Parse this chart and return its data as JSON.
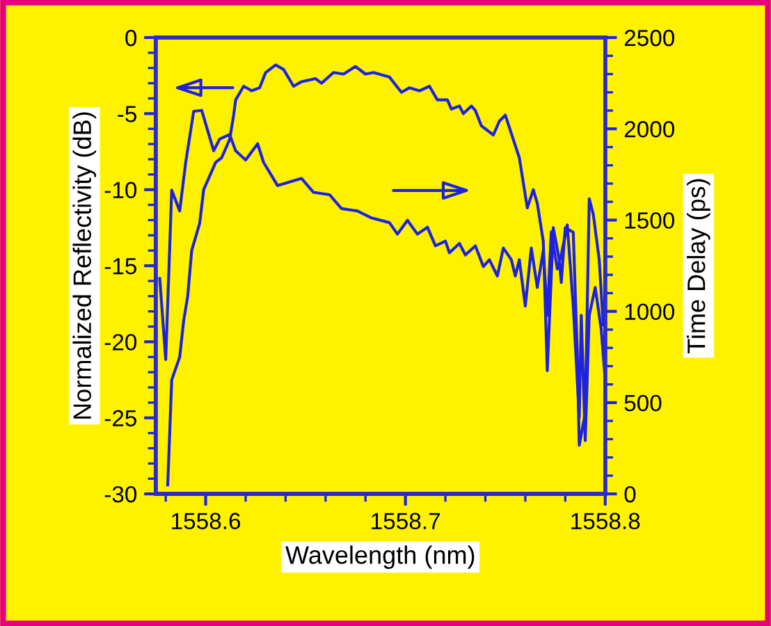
{
  "chart_data": {
    "type": "line",
    "xlabel": "Wavelength (nm)",
    "ylabel": "Normalized Reflectivity (dB)",
    "y2label": "Time Delay (ps)",
    "xlim": [
      1558.575,
      1558.8
    ],
    "xticks": [
      1558.6,
      1558.7,
      1558.8
    ],
    "ylim": [
      -30,
      0
    ],
    "yticks": [
      -30,
      -25,
      -20,
      -15,
      -10,
      -5,
      0
    ],
    "y2lim": [
      0,
      2500
    ],
    "y2ticks": [
      0,
      500,
      1000,
      1500,
      2000,
      2500
    ],
    "grid": false,
    "legend": false,
    "marker": "none",
    "line_style": "solid",
    "series": [
      {
        "color": "#1e22e0",
        "x": [
          1558.581,
          1558.583,
          1558.587,
          1558.589,
          1558.591,
          1558.593,
          1558.597,
          1558.599,
          1558.605,
          1558.608,
          1558.612,
          1558.614,
          1558.615,
          1558.619,
          1558.623,
          1558.627,
          1558.63,
          1558.635,
          1558.639,
          1558.644,
          1558.648,
          1558.655,
          1558.658,
          1558.664,
          1558.669,
          1558.675,
          1558.68,
          1558.684,
          1558.692,
          1558.698,
          1558.702,
          1558.707,
          1558.712,
          1558.716,
          1558.721,
          1558.723,
          1558.727,
          1558.729,
          1558.733,
          1558.735,
          1558.738,
          1558.744,
          1558.747,
          1558.75,
          1558.754,
          1558.757,
          1558.761,
          1558.764,
          1558.766,
          1558.769,
          1558.771,
          1558.774,
          1558.777,
          1558.778,
          1558.78,
          1558.784,
          1558.786,
          1558.787,
          1558.79,
          1558.792,
          1558.794,
          1558.797,
          1558.799
        ],
        "values": [
          -29.4,
          -22.5,
          -21.0,
          -18.6,
          -17.0,
          -14.0,
          -12.2,
          -10.0,
          -8.2,
          -7.9,
          -6.7,
          -5.1,
          -4.1,
          -3.2,
          -3.5,
          -3.3,
          -2.3,
          -1.8,
          -2.1,
          -3.2,
          -2.9,
          -2.7,
          -3.0,
          -2.3,
          -2.4,
          -1.9,
          -2.4,
          -2.3,
          -2.6,
          -3.6,
          -3.3,
          -3.5,
          -3.2,
          -4.1,
          -4.1,
          -4.7,
          -4.5,
          -5.0,
          -4.5,
          -4.8,
          -5.8,
          -6.4,
          -5.5,
          -5.1,
          -6.7,
          -7.9,
          -11.2,
          -10.0,
          -10.9,
          -13.4,
          -21.9,
          -12.5,
          -14.6,
          -16.1,
          -12.5,
          -12.8,
          -20.7,
          -26.8,
          -24.7,
          -10.6,
          -11.6,
          -14.6,
          -18.9
        ]
      },
      {
        "color": "#1e22e0",
        "axis": "y2",
        "x": [
          1558.577,
          1558.58,
          1558.583,
          1558.587,
          1558.59,
          1558.594,
          1558.598,
          1558.604,
          1558.607,
          1558.612,
          1558.615,
          1558.62,
          1558.626,
          1558.629,
          1558.636,
          1558.648,
          1558.654,
          1558.662,
          1558.668,
          1558.676,
          1558.683,
          1558.692,
          1558.696,
          1558.701,
          1558.706,
          1558.711,
          1558.715,
          1558.72,
          1558.722,
          1558.727,
          1558.73,
          1558.735,
          1558.739,
          1558.742,
          1558.746,
          1558.749,
          1558.753,
          1558.755,
          1558.757,
          1558.76,
          1558.763,
          1558.766,
          1558.769,
          1558.771,
          1558.773,
          1558.776,
          1558.778,
          1558.781,
          1558.784,
          1558.787,
          1558.788,
          1558.79,
          1558.792,
          1558.795,
          1558.798,
          1558.8
        ],
        "values": [
          1180,
          736,
          1664,
          1550,
          1816,
          2096,
          2101,
          1880,
          1944,
          1969,
          1880,
          1829,
          1918,
          1816,
          1689,
          1728,
          1652,
          1639,
          1563,
          1550,
          1512,
          1486,
          1423,
          1499,
          1423,
          1461,
          1359,
          1385,
          1321,
          1372,
          1309,
          1359,
          1245,
          1283,
          1194,
          1347,
          1283,
          1194,
          1283,
          1029,
          1347,
          1131,
          1334,
          978,
          1436,
          1232,
          1309,
          1474,
          1029,
          419,
          978,
          292,
          978,
          1131,
          902,
          623
        ]
      }
    ]
  }
}
